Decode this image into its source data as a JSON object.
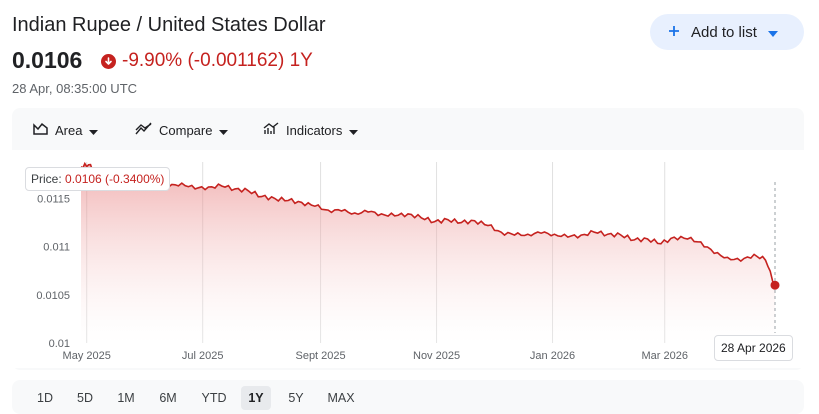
{
  "header": {
    "title": "Indian Rupee / United States Dollar",
    "price": "0.0106",
    "change": "-9.90% (-0.001162) 1Y",
    "timestamp": "28 Apr, 08:35:00 UTC",
    "add_label": "Add to list"
  },
  "toolbar": {
    "area_label": "Area",
    "compare_label": "Compare",
    "indicators_label": "Indicators"
  },
  "tooltip": {
    "prefix": "Price: ",
    "value": "0.0106 (-0.3400%)",
    "date": "28 Apr 2026"
  },
  "ranges": [
    "1D",
    "5D",
    "1M",
    "6M",
    "YTD",
    "1Y",
    "5Y",
    "MAX"
  ],
  "active_range": "1Y",
  "colors": {
    "line": "#c5221f",
    "fill": "#f4c7c3",
    "accent": "#1a73e8"
  },
  "icons": {
    "down": "arrow-down-circle-icon",
    "add": "plus-icon",
    "caret": "caret-down-icon",
    "area": "area-chart-icon",
    "compare": "compare-icon",
    "indicators": "indicators-icon"
  },
  "chart_data": {
    "type": "area",
    "x_ticks": [
      "May 2025",
      "Jul 2025",
      "Sept 2025",
      "Nov 2025",
      "Jan 2026",
      "Mar 2026"
    ],
    "y_ticks": [
      "0.01",
      "0.0105",
      "0.011",
      "0.0115"
    ],
    "ylim": [
      0.01,
      0.0119
    ],
    "grid": "vertical",
    "series": [
      {
        "x": [
          "2025-04-28",
          "2025-05-02",
          "2025-05-06",
          "2025-05-12",
          "2025-05-20",
          "2025-05-28",
          "2025-06-05",
          "2025-06-13",
          "2025-06-20",
          "2025-06-27",
          "2025-07-04",
          "2025-07-11",
          "2025-07-18",
          "2025-07-25",
          "2025-08-01",
          "2025-08-08",
          "2025-08-15",
          "2025-08-22",
          "2025-08-29",
          "2025-09-05",
          "2025-09-12",
          "2025-09-19",
          "2025-09-26",
          "2025-10-03",
          "2025-10-10",
          "2025-10-17",
          "2025-10-24",
          "2025-10-31",
          "2025-11-07",
          "2025-11-14",
          "2025-11-21",
          "2025-11-28",
          "2025-12-05",
          "2025-12-12",
          "2025-12-19",
          "2025-12-26",
          "2026-01-02",
          "2026-01-09",
          "2026-01-16",
          "2026-01-23",
          "2026-01-30",
          "2026-02-06",
          "2026-02-13",
          "2026-02-20",
          "2026-02-27",
          "2026-03-06",
          "2026-03-13",
          "2026-03-20",
          "2026-03-27",
          "2026-04-03",
          "2026-04-10",
          "2026-04-17",
          "2026-04-23",
          "2026-04-28"
        ],
        "y": [
          0.01183,
          0.01185,
          0.01178,
          0.01172,
          0.0117,
          0.01167,
          0.01165,
          0.01162,
          0.01166,
          0.0116,
          0.01162,
          0.01163,
          0.0116,
          0.01158,
          0.01152,
          0.0115,
          0.01148,
          0.01146,
          0.01142,
          0.01138,
          0.01137,
          0.01135,
          0.01136,
          0.01134,
          0.01132,
          0.01134,
          0.0113,
          0.01126,
          0.01128,
          0.01125,
          0.01127,
          0.01122,
          0.01115,
          0.01112,
          0.01113,
          0.01114,
          0.01113,
          0.0111,
          0.01112,
          0.01115,
          0.01113,
          0.01112,
          0.01107,
          0.01108,
          0.01103,
          0.0111,
          0.01108,
          0.01105,
          0.01093,
          0.01089,
          0.01085,
          0.01092,
          0.01086,
          0.0106
        ]
      }
    ]
  }
}
